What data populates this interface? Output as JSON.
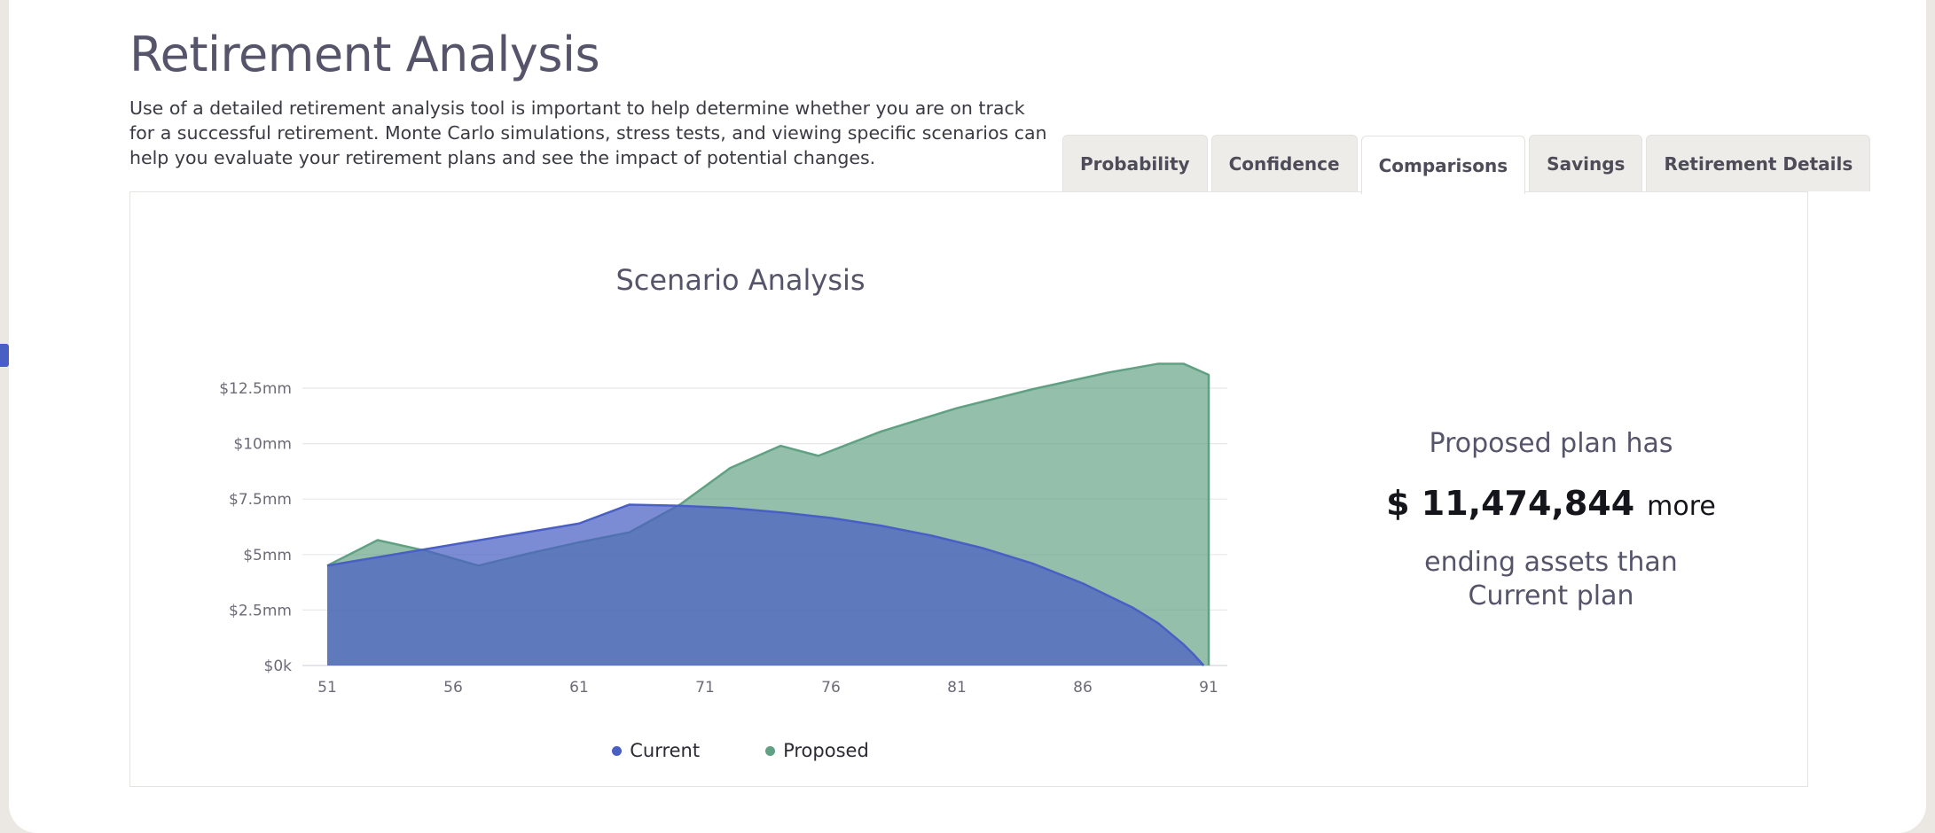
{
  "page": {
    "title": "Retirement Analysis",
    "description": "Use of a detailed retirement analysis tool is important to help determine whether you are on track for a successful retirement. Monte Carlo simulations, stress tests, and viewing specific scenarios can help you evaluate your retirement plans and see the impact of potential changes."
  },
  "tabs": [
    {
      "label": "Probability",
      "active": false
    },
    {
      "label": "Confidence",
      "active": false
    },
    {
      "label": "Comparisons",
      "active": true
    },
    {
      "label": "Savings",
      "active": false
    },
    {
      "label": "Retirement Details",
      "active": false
    }
  ],
  "summary": {
    "line1": "Proposed plan has",
    "amount": "$ 11,474,844",
    "more": "more",
    "line3a": "ending assets than",
    "line3b": "Current plan"
  },
  "colors": {
    "current": "#4a5fc4",
    "proposed": "#61a183",
    "accent": "#4a5fc4"
  },
  "chart_data": {
    "type": "area",
    "title": "Scenario Analysis",
    "xlabel": "",
    "ylabel": "",
    "x_ticks": [
      "51",
      "56",
      "61",
      "71",
      "76",
      "81",
      "86",
      "91"
    ],
    "y_ticks": [
      {
        "value": 0,
        "label": "$0k"
      },
      {
        "value": 2.5,
        "label": "$2.5mm"
      },
      {
        "value": 5,
        "label": "$5mm"
      },
      {
        "value": 7.5,
        "label": "$7.5mm"
      },
      {
        "value": 10,
        "label": "$10mm"
      },
      {
        "value": 12.5,
        "label": "$12.5mm"
      }
    ],
    "ylim": [
      0,
      12.5
    ],
    "grid": true,
    "legend_position": "bottom-center",
    "series": [
      {
        "name": "Current",
        "color": "#4a5fc4",
        "points": [
          {
            "x": 0,
            "y": 4.5
          },
          {
            "x": 10,
            "y": 6.4
          },
          {
            "x": 12,
            "y": 7.25
          },
          {
            "x": 14,
            "y": 7.2
          },
          {
            "x": 16,
            "y": 7.1
          },
          {
            "x": 18,
            "y": 6.9
          },
          {
            "x": 20,
            "y": 6.65
          },
          {
            "x": 22,
            "y": 6.3
          },
          {
            "x": 24,
            "y": 5.85
          },
          {
            "x": 26,
            "y": 5.3
          },
          {
            "x": 28,
            "y": 4.6
          },
          {
            "x": 30,
            "y": 3.7
          },
          {
            "x": 32,
            "y": 2.6
          },
          {
            "x": 33,
            "y": 1.9
          },
          {
            "x": 34,
            "y": 0.95
          },
          {
            "x": 34.4,
            "y": 0.5
          },
          {
            "x": 34.8,
            "y": 0
          }
        ]
      },
      {
        "name": "Proposed",
        "color": "#61a183",
        "points": [
          {
            "x": 0,
            "y": 4.5
          },
          {
            "x": 2,
            "y": 5.65
          },
          {
            "x": 4,
            "y": 5.15
          },
          {
            "x": 6,
            "y": 4.5
          },
          {
            "x": 8,
            "y": 5.05
          },
          {
            "x": 10,
            "y": 5.55
          },
          {
            "x": 12,
            "y": 6.0
          },
          {
            "x": 14,
            "y": 7.25
          },
          {
            "x": 16,
            "y": 8.9
          },
          {
            "x": 18,
            "y": 9.9
          },
          {
            "x": 19.5,
            "y": 9.45
          },
          {
            "x": 22,
            "y": 10.55
          },
          {
            "x": 25,
            "y": 11.6
          },
          {
            "x": 28,
            "y": 12.45
          },
          {
            "x": 31,
            "y": 13.2
          },
          {
            "x": 33,
            "y": 13.6
          },
          {
            "x": 34,
            "y": 13.6
          },
          {
            "x": 35,
            "y": 13.1
          },
          {
            "x": 35,
            "y": 0
          }
        ]
      }
    ]
  }
}
